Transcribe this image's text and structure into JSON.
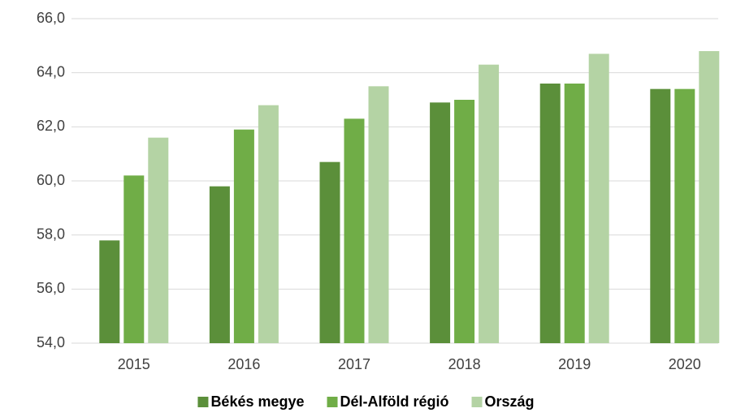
{
  "chart_data": {
    "type": "bar",
    "categories": [
      "2015",
      "2016",
      "2017",
      "2018",
      "2019",
      "2020"
    ],
    "series": [
      {
        "name": "Békés megye",
        "color": "#5b8f3a",
        "values": [
          57.8,
          59.8,
          60.7,
          62.9,
          63.6,
          63.4
        ]
      },
      {
        "name": "Dél-Alföld régió",
        "color": "#70ad47",
        "values": [
          60.2,
          61.9,
          62.3,
          63.0,
          63.6,
          63.4
        ]
      },
      {
        "name": "Ország",
        "color": "#b4d3a4",
        "values": [
          61.6,
          62.8,
          63.5,
          64.3,
          64.7,
          64.8
        ]
      }
    ],
    "ylim": [
      54,
      66
    ],
    "yticks": [
      {
        "value": 54,
        "label": "54,0"
      },
      {
        "value": 56,
        "label": "56,0"
      },
      {
        "value": 58,
        "label": "58,0"
      },
      {
        "value": 60,
        "label": "60,0"
      },
      {
        "value": 62,
        "label": "62,0"
      },
      {
        "value": 64,
        "label": "64,0"
      },
      {
        "value": 66,
        "label": "66,0"
      }
    ],
    "grid": true,
    "legend": "bottom"
  }
}
